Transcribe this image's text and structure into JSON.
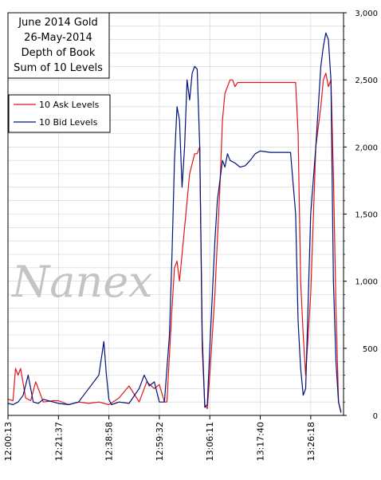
{
  "chart_data": {
    "type": "line",
    "title_lines": [
      "June 2014 Gold",
      "26-May-2014",
      "Depth of Book",
      "Sum of 10 Levels"
    ],
    "watermark": "Nanex",
    "legend_position": "top-left",
    "grid": true,
    "ylim": [
      0,
      3000
    ],
    "y_ticks": [
      "0",
      "500",
      "1,000",
      "1,500",
      "2,000",
      "2,500",
      "3,000"
    ],
    "y_tick_values": [
      0,
      500,
      1000,
      1500,
      2000,
      2500,
      3000
    ],
    "x_ticks": [
      "12:00:13",
      "12:21:37",
      "12:38:58",
      "12:59:32",
      "13:06:11",
      "13:17:40",
      "13:26:18"
    ],
    "x_tick_positions": [
      0,
      1,
      2,
      3,
      4,
      5,
      6
    ],
    "x_max": 6.65,
    "colors": {
      "ask": "#e0161a",
      "bid": "#00127a",
      "grid": "#d0d0d0",
      "watermark": "#c4c4c4"
    },
    "series": [
      {
        "name": "10 Ask Levels",
        "color": "#e0161a",
        "x": [
          0,
          0.1,
          0.15,
          0.2,
          0.25,
          0.35,
          0.45,
          0.55,
          0.7,
          0.9,
          1.0,
          1.2,
          1.4,
          1.6,
          1.8,
          2.0,
          2.2,
          2.4,
          2.6,
          2.75,
          2.9,
          3.0,
          3.1,
          3.15,
          3.2,
          3.25,
          3.3,
          3.35,
          3.4,
          3.5,
          3.6,
          3.7,
          3.75,
          3.8,
          3.85,
          3.9,
          3.95,
          4.0,
          4.05,
          4.1,
          4.15,
          4.2,
          4.25,
          4.3,
          4.35,
          4.4,
          4.45,
          4.5,
          4.55,
          4.6,
          4.7,
          4.8,
          5.0,
          5.2,
          5.4,
          5.6,
          5.7,
          5.75,
          5.8,
          5.85,
          5.9,
          6.0,
          6.1,
          6.2,
          6.25,
          6.3,
          6.35,
          6.4,
          6.45,
          6.5,
          6.55,
          6.6
        ],
        "y": [
          120,
          110,
          350,
          300,
          350,
          130,
          110,
          250,
          100,
          110,
          110,
          80,
          100,
          90,
          100,
          80,
          130,
          220,
          100,
          250,
          200,
          230,
          100,
          100,
          450,
          800,
          1100,
          1150,
          1000,
          1400,
          1800,
          1950,
          1950,
          2000,
          500,
          80,
          50,
          300,
          600,
          900,
          1300,
          1700,
          2200,
          2400,
          2450,
          2500,
          2500,
          2450,
          2480,
          2480,
          2480,
          2480,
          2480,
          2480,
          2480,
          2480,
          2480,
          2100,
          1000,
          600,
          300,
          900,
          2000,
          2300,
          2500,
          2550,
          2450,
          2500,
          1800,
          800,
          100,
          30
        ]
      },
      {
        "name": "10 Bid Levels",
        "color": "#00127a",
        "x": [
          0,
          0.1,
          0.2,
          0.3,
          0.4,
          0.5,
          0.6,
          0.7,
          0.8,
          0.9,
          1.0,
          1.2,
          1.4,
          1.6,
          1.8,
          1.9,
          1.95,
          2.0,
          2.05,
          2.2,
          2.4,
          2.6,
          2.7,
          2.8,
          2.9,
          3.0,
          3.1,
          3.2,
          3.25,
          3.3,
          3.35,
          3.4,
          3.45,
          3.5,
          3.55,
          3.6,
          3.65,
          3.7,
          3.75,
          3.8,
          3.85,
          3.9,
          3.95,
          4.0,
          4.05,
          4.1,
          4.15,
          4.2,
          4.25,
          4.3,
          4.35,
          4.4,
          4.5,
          4.6,
          4.7,
          4.8,
          4.9,
          5.0,
          5.2,
          5.4,
          5.6,
          5.7,
          5.75,
          5.8,
          5.85,
          5.9,
          6.0,
          6.1,
          6.2,
          6.25,
          6.3,
          6.35,
          6.4,
          6.45,
          6.5,
          6.55,
          6.6
        ],
        "y": [
          90,
          80,
          100,
          150,
          300,
          100,
          90,
          120,
          110,
          100,
          90,
          80,
          100,
          200,
          300,
          550,
          300,
          120,
          80,
          100,
          90,
          200,
          300,
          220,
          250,
          100,
          100,
          600,
          1200,
          1900,
          2300,
          2200,
          1700,
          2000,
          2500,
          2350,
          2550,
          2600,
          2580,
          2000,
          600,
          60,
          80,
          500,
          900,
          1300,
          1600,
          1750,
          1900,
          1850,
          1950,
          1900,
          1880,
          1850,
          1860,
          1900,
          1950,
          1970,
          1960,
          1960,
          1960,
          1500,
          700,
          350,
          150,
          200,
          1500,
          2000,
          2600,
          2750,
          2850,
          2800,
          2500,
          1000,
          400,
          100,
          20
        ]
      }
    ]
  }
}
